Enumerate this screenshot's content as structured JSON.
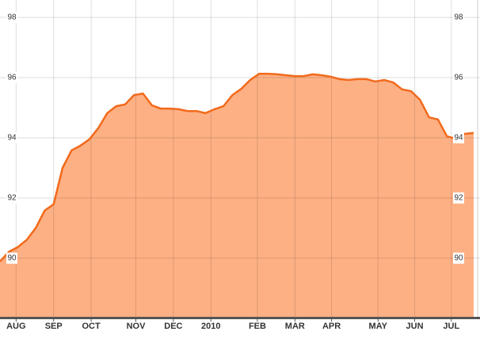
{
  "chart_data": {
    "type": "area",
    "x": [
      0,
      1,
      2,
      3,
      4,
      5,
      6,
      7,
      8,
      9,
      10,
      11,
      12,
      13,
      14,
      15,
      16,
      17,
      18,
      19,
      20,
      21,
      22,
      23,
      24,
      25,
      26,
      27,
      28,
      29,
      30,
      31,
      32,
      33,
      34,
      35,
      36,
      37,
      38,
      39,
      40,
      41,
      42,
      43,
      44,
      45,
      46,
      47,
      48,
      49,
      50,
      51,
      52,
      53
    ],
    "values": [
      89.89,
      90.21,
      90.37,
      90.61,
      91.0,
      91.58,
      91.79,
      93.0,
      93.58,
      93.74,
      93.95,
      94.32,
      94.82,
      95.05,
      95.11,
      95.42,
      95.47,
      95.08,
      94.97,
      94.97,
      94.95,
      94.89,
      94.89,
      94.82,
      94.95,
      95.05,
      95.42,
      95.63,
      95.92,
      96.13,
      96.13,
      96.11,
      96.08,
      96.05,
      96.05,
      96.11,
      96.08,
      96.03,
      95.95,
      95.92,
      95.95,
      95.95,
      95.87,
      95.92,
      95.84,
      95.61,
      95.55,
      95.26,
      94.68,
      94.61,
      94.05,
      93.97,
      94.13,
      94.16
    ],
    "color": "#f26a1b",
    "fill": "#fdb084",
    "xlim": [
      0,
      53
    ],
    "xticks": [
      {
        "value": 1.8,
        "label": "AUG"
      },
      {
        "value": 6.0,
        "label": "SEP"
      },
      {
        "value": 10.2,
        "label": "OCT"
      },
      {
        "value": 15.2,
        "label": "NOV"
      },
      {
        "value": 19.4,
        "label": "DEC"
      },
      {
        "value": 23.6,
        "label": "2010"
      },
      {
        "value": 28.8,
        "label": "FEB"
      },
      {
        "value": 33.0,
        "label": "MAR"
      },
      {
        "value": 37.1,
        "label": "APR"
      },
      {
        "value": 42.3,
        "label": "MAY"
      },
      {
        "value": 46.4,
        "label": "JUN"
      },
      {
        "value": 50.5,
        "label": "JUL"
      }
    ],
    "ylim": [
      88.05,
      98.58
    ],
    "yticks": [
      90,
      92,
      94,
      96,
      98
    ],
    "grid": true
  }
}
